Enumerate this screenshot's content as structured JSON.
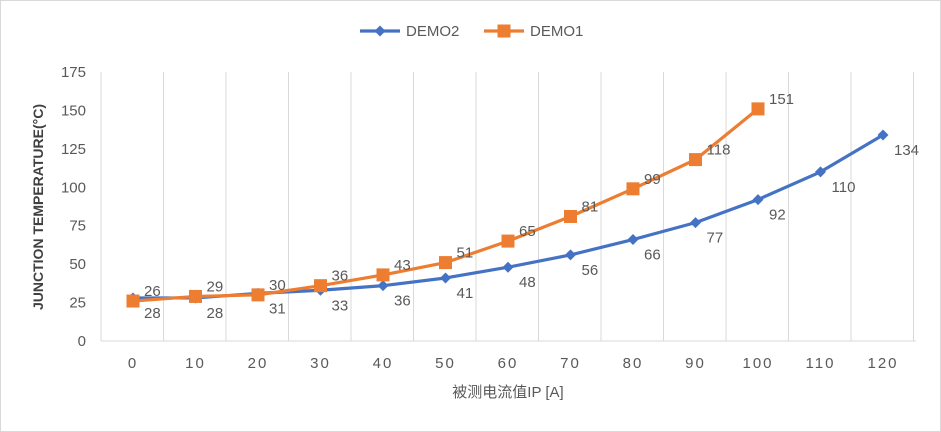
{
  "chart_data": {
    "type": "line",
    "ylabel": "JUNCTION TEMPERATURE(°C)",
    "xlabel": "被测电流值IP [A]",
    "ylim": [
      0,
      175
    ],
    "yticks": [
      0,
      25,
      50,
      75,
      100,
      125,
      150,
      175
    ],
    "xticks": [
      0,
      10,
      20,
      30,
      40,
      50,
      60,
      70,
      80,
      90,
      100,
      110,
      120
    ],
    "grid": "vertical",
    "legend": "top-center",
    "series": [
      {
        "name": "DEMO2",
        "color": "#4472c4",
        "marker": "diamond",
        "x": [
          0,
          10,
          20,
          30,
          40,
          50,
          60,
          70,
          80,
          90,
          100,
          110,
          120
        ],
        "values": [
          28,
          28,
          31,
          33,
          36,
          41,
          48,
          56,
          66,
          77,
          92,
          110,
          134
        ],
        "labels": [
          "28",
          "28",
          "31",
          "33",
          "36",
          "41",
          "48",
          "56",
          "66",
          "77",
          "92",
          "110",
          "134"
        ]
      },
      {
        "name": "DEMO1",
        "color": "#ed7d31",
        "marker": "square",
        "x": [
          0,
          10,
          20,
          30,
          40,
          50,
          60,
          70,
          80,
          90,
          100
        ],
        "values": [
          26,
          29,
          30,
          36,
          43,
          51,
          65,
          81,
          99,
          118,
          151
        ],
        "labels": [
          "26",
          "29",
          "30",
          "36",
          "43",
          "51",
          "65",
          "81",
          "99",
          "118",
          "151"
        ]
      }
    ]
  }
}
